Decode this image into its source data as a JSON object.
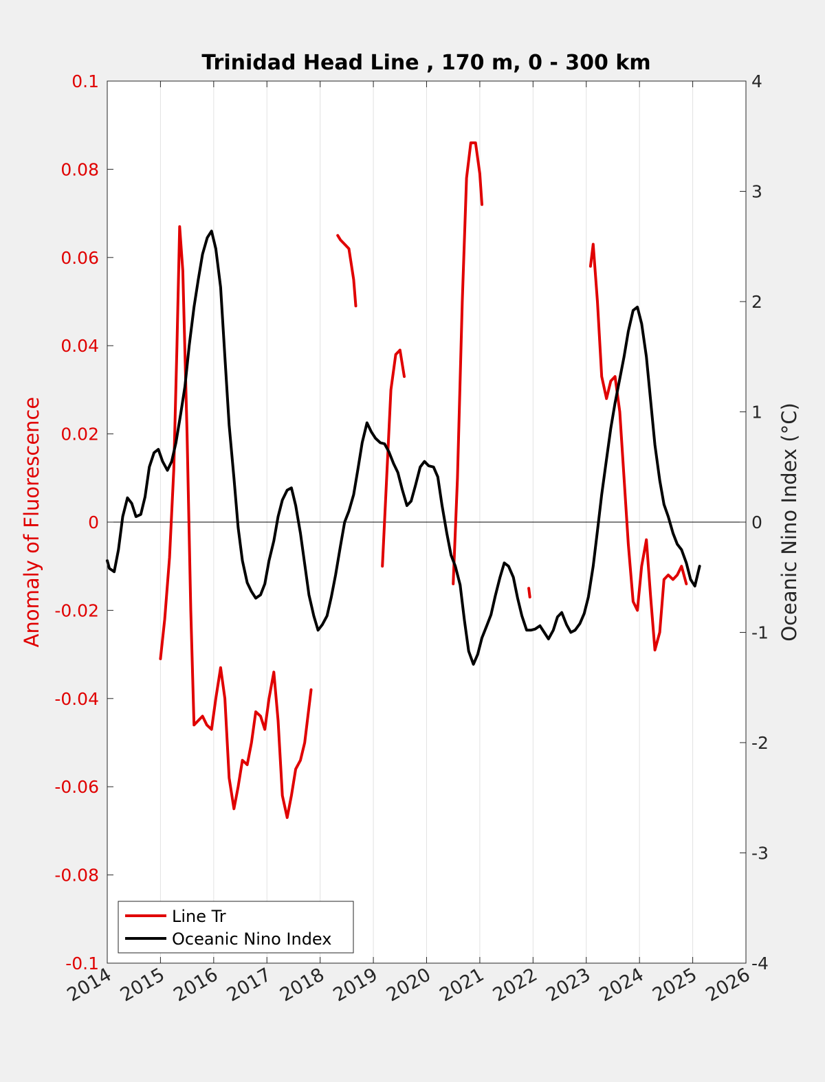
{
  "chart_data": {
    "type": "line",
    "title": "Trinidad Head Line , 170 m, 0 - 300 km",
    "xlim": [
      2014,
      2026
    ],
    "x_ticks": [
      "2014",
      "2015",
      "2016",
      "2017",
      "2018",
      "2019",
      "2020",
      "2021",
      "2022",
      "2023",
      "2024",
      "2025",
      "2026"
    ],
    "ylabel_left": "Anomaly of Fluorescence",
    "ylim_left": [
      -0.1,
      0.1
    ],
    "y_ticks_left": [
      "-0.1",
      "-0.08",
      "-0.06",
      "-0.04",
      "-0.02",
      "0",
      "0.02",
      "0.04",
      "0.06",
      "0.08",
      "0.1"
    ],
    "ylabel_right": "Oceanic Nino Index (°C)",
    "ylim_right": [
      -4,
      4
    ],
    "y_ticks_right": [
      "-4",
      "-3",
      "-2",
      "-1",
      "0",
      "1",
      "2",
      "3",
      "4"
    ],
    "grid": "vertical",
    "zero_line": true,
    "legend_position": "bottom-left",
    "colors": {
      "left_axis": "#e00000",
      "fluorescence": "#e00000",
      "oni": "#000000"
    },
    "series": [
      {
        "name": "Line Tr",
        "axis": "left",
        "segments": [
          [
            [
              2015.0,
              -0.031
            ],
            [
              2015.08,
              -0.022
            ],
            [
              2015.17,
              -0.008
            ],
            [
              2015.25,
              0.012
            ],
            [
              2015.31,
              0.04
            ],
            [
              2015.36,
              0.067
            ],
            [
              2015.42,
              0.057
            ],
            [
              2015.5,
              0.02
            ],
            [
              2015.57,
              -0.02
            ],
            [
              2015.63,
              -0.046
            ],
            [
              2015.71,
              -0.045
            ],
            [
              2015.79,
              -0.044
            ],
            [
              2015.87,
              -0.046
            ],
            [
              2015.96,
              -0.047
            ],
            [
              2016.04,
              -0.04
            ],
            [
              2016.13,
              -0.033
            ],
            [
              2016.21,
              -0.04
            ],
            [
              2016.29,
              -0.058
            ],
            [
              2016.38,
              -0.065
            ],
            [
              2016.46,
              -0.06
            ],
            [
              2016.54,
              -0.054
            ],
            [
              2016.63,
              -0.055
            ],
            [
              2016.71,
              -0.05
            ],
            [
              2016.79,
              -0.043
            ],
            [
              2016.88,
              -0.044
            ],
            [
              2016.96,
              -0.047
            ],
            [
              2017.04,
              -0.04
            ],
            [
              2017.13,
              -0.034
            ],
            [
              2017.21,
              -0.045
            ],
            [
              2017.29,
              -0.062
            ],
            [
              2017.38,
              -0.067
            ],
            [
              2017.46,
              -0.062
            ],
            [
              2017.54,
              -0.056
            ],
            [
              2017.63,
              -0.054
            ],
            [
              2017.71,
              -0.05
            ],
            [
              2017.79,
              -0.042
            ],
            [
              2017.83,
              -0.038
            ]
          ],
          [
            [
              2018.33,
              0.065
            ],
            [
              2018.38,
              0.064
            ],
            [
              2018.46,
              0.063
            ],
            [
              2018.54,
              0.062
            ],
            [
              2018.63,
              0.055
            ],
            [
              2018.67,
              0.049
            ]
          ],
          [
            [
              2019.17,
              -0.01
            ],
            [
              2019.25,
              0.01
            ],
            [
              2019.33,
              0.03
            ],
            [
              2019.42,
              0.038
            ],
            [
              2019.5,
              0.039
            ],
            [
              2019.58,
              0.033
            ]
          ],
          [
            [
              2020.5,
              -0.014
            ],
            [
              2020.58,
              0.01
            ],
            [
              2020.67,
              0.05
            ],
            [
              2020.75,
              0.078
            ],
            [
              2020.83,
              0.086
            ],
            [
              2020.92,
              0.086
            ],
            [
              2021.0,
              0.079
            ],
            [
              2021.04,
              0.072
            ]
          ],
          [
            [
              2021.92,
              -0.015
            ],
            [
              2021.94,
              -0.017
            ]
          ],
          [
            [
              2023.08,
              0.058
            ],
            [
              2023.13,
              0.063
            ],
            [
              2023.21,
              0.05
            ],
            [
              2023.29,
              0.033
            ],
            [
              2023.38,
              0.028
            ],
            [
              2023.46,
              0.032
            ],
            [
              2023.54,
              0.033
            ],
            [
              2023.63,
              0.025
            ],
            [
              2023.71,
              0.01
            ],
            [
              2023.79,
              -0.005
            ],
            [
              2023.88,
              -0.018
            ],
            [
              2023.96,
              -0.02
            ],
            [
              2024.04,
              -0.01
            ],
            [
              2024.13,
              -0.004
            ],
            [
              2024.21,
              -0.017
            ],
            [
              2024.29,
              -0.029
            ],
            [
              2024.38,
              -0.025
            ],
            [
              2024.46,
              -0.013
            ],
            [
              2024.54,
              -0.012
            ],
            [
              2024.63,
              -0.013
            ],
            [
              2024.71,
              -0.012
            ],
            [
              2024.79,
              -0.01
            ],
            [
              2024.88,
              -0.014
            ]
          ]
        ]
      },
      {
        "name": "Oceanic Nino Index",
        "axis": "right",
        "segments": [
          [
            [
              2014.0,
              -0.35
            ],
            [
              2014.04,
              -0.42
            ],
            [
              2014.13,
              -0.45
            ],
            [
              2014.21,
              -0.25
            ],
            [
              2014.29,
              0.05
            ],
            [
              2014.38,
              0.22
            ],
            [
              2014.46,
              0.17
            ],
            [
              2014.54,
              0.05
            ],
            [
              2014.63,
              0.07
            ],
            [
              2014.71,
              0.23
            ],
            [
              2014.79,
              0.5
            ],
            [
              2014.88,
              0.63
            ],
            [
              2014.96,
              0.66
            ],
            [
              2015.04,
              0.55
            ],
            [
              2015.13,
              0.47
            ],
            [
              2015.21,
              0.55
            ],
            [
              2015.29,
              0.72
            ],
            [
              2015.38,
              0.98
            ],
            [
              2015.46,
              1.23
            ],
            [
              2015.54,
              1.6
            ],
            [
              2015.63,
              1.95
            ],
            [
              2015.71,
              2.2
            ],
            [
              2015.79,
              2.43
            ],
            [
              2015.88,
              2.58
            ],
            [
              2015.96,
              2.64
            ],
            [
              2016.04,
              2.48
            ],
            [
              2016.13,
              2.13
            ],
            [
              2016.21,
              1.5
            ],
            [
              2016.29,
              0.88
            ],
            [
              2016.38,
              0.4
            ],
            [
              2016.46,
              -0.05
            ],
            [
              2016.54,
              -0.35
            ],
            [
              2016.63,
              -0.55
            ],
            [
              2016.71,
              -0.63
            ],
            [
              2016.79,
              -0.69
            ],
            [
              2016.88,
              -0.66
            ],
            [
              2016.96,
              -0.56
            ],
            [
              2017.04,
              -0.35
            ],
            [
              2017.13,
              -0.17
            ],
            [
              2017.21,
              0.05
            ],
            [
              2017.29,
              0.2
            ],
            [
              2017.38,
              0.29
            ],
            [
              2017.46,
              0.31
            ],
            [
              2017.54,
              0.15
            ],
            [
              2017.63,
              -0.1
            ],
            [
              2017.71,
              -0.38
            ],
            [
              2017.79,
              -0.66
            ],
            [
              2017.88,
              -0.85
            ],
            [
              2017.96,
              -0.98
            ],
            [
              2018.04,
              -0.93
            ],
            [
              2018.13,
              -0.85
            ],
            [
              2018.21,
              -0.68
            ],
            [
              2018.29,
              -0.48
            ],
            [
              2018.38,
              -0.22
            ],
            [
              2018.46,
              0.0
            ],
            [
              2018.54,
              0.1
            ],
            [
              2018.63,
              0.25
            ],
            [
              2018.71,
              0.48
            ],
            [
              2018.79,
              0.72
            ],
            [
              2018.88,
              0.9
            ],
            [
              2018.96,
              0.82
            ],
            [
              2019.04,
              0.76
            ],
            [
              2019.13,
              0.72
            ],
            [
              2019.21,
              0.71
            ],
            [
              2019.29,
              0.64
            ],
            [
              2019.38,
              0.53
            ],
            [
              2019.46,
              0.45
            ],
            [
              2019.54,
              0.3
            ],
            [
              2019.63,
              0.15
            ],
            [
              2019.71,
              0.19
            ],
            [
              2019.79,
              0.33
            ],
            [
              2019.88,
              0.5
            ],
            [
              2019.96,
              0.55
            ],
            [
              2020.04,
              0.51
            ],
            [
              2020.13,
              0.5
            ],
            [
              2020.21,
              0.41
            ],
            [
              2020.29,
              0.15
            ],
            [
              2020.38,
              -0.1
            ],
            [
              2020.46,
              -0.3
            ],
            [
              2020.54,
              -0.4
            ],
            [
              2020.63,
              -0.57
            ],
            [
              2020.71,
              -0.89
            ],
            [
              2020.79,
              -1.17
            ],
            [
              2020.88,
              -1.29
            ],
            [
              2020.96,
              -1.2
            ],
            [
              2021.04,
              -1.05
            ],
            [
              2021.13,
              -0.94
            ],
            [
              2021.21,
              -0.84
            ],
            [
              2021.29,
              -0.67
            ],
            [
              2021.38,
              -0.5
            ],
            [
              2021.46,
              -0.37
            ],
            [
              2021.54,
              -0.4
            ],
            [
              2021.63,
              -0.5
            ],
            [
              2021.71,
              -0.69
            ],
            [
              2021.79,
              -0.85
            ],
            [
              2021.88,
              -0.98
            ],
            [
              2021.96,
              -0.98
            ],
            [
              2022.04,
              -0.97
            ],
            [
              2022.13,
              -0.94
            ],
            [
              2022.21,
              -1.0
            ],
            [
              2022.29,
              -1.06
            ],
            [
              2022.38,
              -0.98
            ],
            [
              2022.46,
              -0.86
            ],
            [
              2022.54,
              -0.82
            ],
            [
              2022.63,
              -0.93
            ],
            [
              2022.71,
              -1.0
            ],
            [
              2022.79,
              -0.98
            ],
            [
              2022.88,
              -0.92
            ],
            [
              2022.96,
              -0.83
            ],
            [
              2023.04,
              -0.68
            ],
            [
              2023.13,
              -0.4
            ],
            [
              2023.21,
              -0.08
            ],
            [
              2023.29,
              0.25
            ],
            [
              2023.38,
              0.57
            ],
            [
              2023.46,
              0.85
            ],
            [
              2023.54,
              1.08
            ],
            [
              2023.63,
              1.3
            ],
            [
              2023.71,
              1.5
            ],
            [
              2023.79,
              1.73
            ],
            [
              2023.88,
              1.92
            ],
            [
              2023.96,
              1.95
            ],
            [
              2024.04,
              1.8
            ],
            [
              2024.13,
              1.5
            ],
            [
              2024.21,
              1.1
            ],
            [
              2024.29,
              0.7
            ],
            [
              2024.38,
              0.38
            ],
            [
              2024.46,
              0.16
            ],
            [
              2024.54,
              0.05
            ],
            [
              2024.63,
              -0.1
            ],
            [
              2024.71,
              -0.2
            ],
            [
              2024.79,
              -0.25
            ],
            [
              2024.88,
              -0.37
            ],
            [
              2024.96,
              -0.52
            ],
            [
              2025.04,
              -0.58
            ],
            [
              2025.13,
              -0.4
            ]
          ]
        ]
      }
    ]
  }
}
